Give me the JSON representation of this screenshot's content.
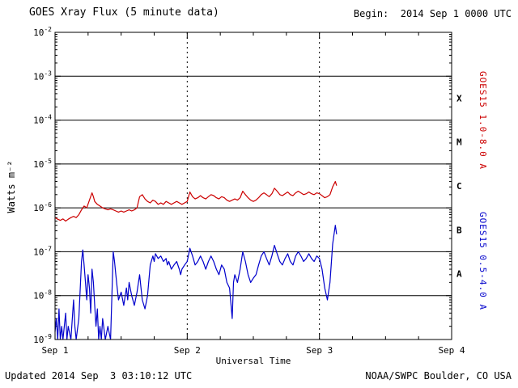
{
  "header": {
    "title": "GOES Xray Flux (5 minute data)",
    "begin": "Begin:  2014 Sep 1 0000 UTC"
  },
  "footer": {
    "updated": "Updated 2014 Sep  3 03:10:12 UTC",
    "source": "NOAA/SWPC Boulder, CO USA"
  },
  "chart_data": {
    "type": "line",
    "title": "GOES Xray Flux (5 minute data)",
    "xlabel": "Universal Time",
    "ylabel": "Watts m⁻²",
    "x_unit": "days since 2014 Sep 1 0000 UTC",
    "xlim": [
      0,
      3
    ],
    "ylim": [
      1e-09,
      0.01
    ],
    "yscale": "log",
    "grid": "decade hlines solid, day vlines dotted",
    "legend_position": "right-rotated",
    "xticks": [
      {
        "value": 0,
        "label": "Sep 1"
      },
      {
        "value": 1,
        "label": "Sep 2"
      },
      {
        "value": 2,
        "label": "Sep 3"
      },
      {
        "value": 3,
        "label": "Sep 4"
      }
    ],
    "ytick_exponents": [
      -2,
      -3,
      -4,
      -5,
      -6,
      -7,
      -8,
      -9
    ],
    "hlines_exponents": [
      -3,
      -4,
      -5,
      -6,
      -7,
      -8
    ],
    "vlines_days": [
      1,
      2
    ],
    "flare_classes": [
      {
        "label": "X",
        "exp": -3.5
      },
      {
        "label": "M",
        "exp": -4.5
      },
      {
        "label": "C",
        "exp": -5.5
      },
      {
        "label": "B",
        "exp": -6.5
      },
      {
        "label": "A",
        "exp": -7.5
      }
    ],
    "series": [
      {
        "name": "GOES15 1.0-8.0 A",
        "color": "#cc0000",
        "points": [
          [
            0.0,
            6e-07
          ],
          [
            0.02,
            5.5e-07
          ],
          [
            0.04,
            5.2e-07
          ],
          [
            0.06,
            5.6e-07
          ],
          [
            0.08,
            5e-07
          ],
          [
            0.1,
            5.5e-07
          ],
          [
            0.12,
            6e-07
          ],
          [
            0.14,
            6.4e-07
          ],
          [
            0.16,
            6e-07
          ],
          [
            0.18,
            7e-07
          ],
          [
            0.2,
            9e-07
          ],
          [
            0.22,
            1.1e-06
          ],
          [
            0.24,
            1e-06
          ],
          [
            0.26,
            1.5e-06
          ],
          [
            0.28,
            2.2e-06
          ],
          [
            0.29,
            1.8e-06
          ],
          [
            0.3,
            1.4e-06
          ],
          [
            0.32,
            1.2e-06
          ],
          [
            0.34,
            1.1e-06
          ],
          [
            0.36,
            1e-06
          ],
          [
            0.38,
            9.5e-07
          ],
          [
            0.4,
            9e-07
          ],
          [
            0.42,
            9.5e-07
          ],
          [
            0.44,
            9e-07
          ],
          [
            0.46,
            8.5e-07
          ],
          [
            0.48,
            8e-07
          ],
          [
            0.5,
            8.5e-07
          ],
          [
            0.52,
            8e-07
          ],
          [
            0.54,
            8.5e-07
          ],
          [
            0.56,
            9e-07
          ],
          [
            0.58,
            8.5e-07
          ],
          [
            0.6,
            9e-07
          ],
          [
            0.62,
            1e-06
          ],
          [
            0.64,
            1.8e-06
          ],
          [
            0.66,
            2e-06
          ],
          [
            0.68,
            1.6e-06
          ],
          [
            0.7,
            1.4e-06
          ],
          [
            0.72,
            1.3e-06
          ],
          [
            0.74,
            1.5e-06
          ],
          [
            0.76,
            1.4e-06
          ],
          [
            0.78,
            1.2e-06
          ],
          [
            0.8,
            1.3e-06
          ],
          [
            0.82,
            1.2e-06
          ],
          [
            0.84,
            1.4e-06
          ],
          [
            0.86,
            1.3e-06
          ],
          [
            0.88,
            1.2e-06
          ],
          [
            0.9,
            1.3e-06
          ],
          [
            0.92,
            1.4e-06
          ],
          [
            0.94,
            1.3e-06
          ],
          [
            0.96,
            1.2e-06
          ],
          [
            0.98,
            1.3e-06
          ],
          [
            1.0,
            1.4e-06
          ],
          [
            1.02,
            2.3e-06
          ],
          [
            1.04,
            1.8e-06
          ],
          [
            1.06,
            1.6e-06
          ],
          [
            1.08,
            1.7e-06
          ],
          [
            1.1,
            1.9e-06
          ],
          [
            1.12,
            1.7e-06
          ],
          [
            1.14,
            1.6e-06
          ],
          [
            1.16,
            1.8e-06
          ],
          [
            1.18,
            2e-06
          ],
          [
            1.2,
            1.9e-06
          ],
          [
            1.22,
            1.7e-06
          ],
          [
            1.24,
            1.6e-06
          ],
          [
            1.26,
            1.8e-06
          ],
          [
            1.28,
            1.7e-06
          ],
          [
            1.3,
            1.5e-06
          ],
          [
            1.32,
            1.4e-06
          ],
          [
            1.34,
            1.5e-06
          ],
          [
            1.36,
            1.6e-06
          ],
          [
            1.38,
            1.5e-06
          ],
          [
            1.4,
            1.7e-06
          ],
          [
            1.42,
            2.4e-06
          ],
          [
            1.44,
            2e-06
          ],
          [
            1.46,
            1.7e-06
          ],
          [
            1.48,
            1.5e-06
          ],
          [
            1.5,
            1.4e-06
          ],
          [
            1.52,
            1.5e-06
          ],
          [
            1.54,
            1.7e-06
          ],
          [
            1.56,
            2e-06
          ],
          [
            1.58,
            2.2e-06
          ],
          [
            1.6,
            2e-06
          ],
          [
            1.62,
            1.8e-06
          ],
          [
            1.64,
            2.1e-06
          ],
          [
            1.66,
            2.8e-06
          ],
          [
            1.68,
            2.4e-06
          ],
          [
            1.7,
            2e-06
          ],
          [
            1.72,
            1.9e-06
          ],
          [
            1.74,
            2.1e-06
          ],
          [
            1.76,
            2.3e-06
          ],
          [
            1.78,
            2e-06
          ],
          [
            1.8,
            1.9e-06
          ],
          [
            1.82,
            2.2e-06
          ],
          [
            1.84,
            2.4e-06
          ],
          [
            1.86,
            2.2e-06
          ],
          [
            1.88,
            2e-06
          ],
          [
            1.9,
            2.1e-06
          ],
          [
            1.92,
            2.3e-06
          ],
          [
            1.94,
            2.1e-06
          ],
          [
            1.96,
            2e-06
          ],
          [
            1.98,
            2.2e-06
          ],
          [
            2.0,
            2.1e-06
          ],
          [
            2.02,
            1.9e-06
          ],
          [
            2.04,
            1.7e-06
          ],
          [
            2.06,
            1.8e-06
          ],
          [
            2.08,
            2e-06
          ],
          [
            2.1,
            3e-06
          ],
          [
            2.12,
            4e-06
          ],
          [
            2.13,
            3.2e-06
          ]
        ]
      },
      {
        "name": "GOES15 0.5-4.0 A",
        "color": "#0000cc",
        "points": [
          [
            0.0,
            1.5e-09
          ],
          [
            0.01,
            3e-09
          ],
          [
            0.02,
            1e-09
          ],
          [
            0.03,
            5e-09
          ],
          [
            0.04,
            1e-09
          ],
          [
            0.05,
            2e-09
          ],
          [
            0.06,
            1e-09
          ],
          [
            0.08,
            4e-09
          ],
          [
            0.09,
            1e-09
          ],
          [
            0.1,
            2e-09
          ],
          [
            0.12,
            1e-09
          ],
          [
            0.14,
            8e-09
          ],
          [
            0.15,
            2e-09
          ],
          [
            0.16,
            1e-09
          ],
          [
            0.18,
            3e-09
          ],
          [
            0.2,
            6e-08
          ],
          [
            0.21,
            1.1e-07
          ],
          [
            0.22,
            5e-08
          ],
          [
            0.23,
            2e-08
          ],
          [
            0.24,
            8e-09
          ],
          [
            0.25,
            3e-08
          ],
          [
            0.26,
            1.5e-08
          ],
          [
            0.27,
            4e-09
          ],
          [
            0.28,
            4e-08
          ],
          [
            0.29,
            2e-08
          ],
          [
            0.3,
            6e-09
          ],
          [
            0.31,
            2e-09
          ],
          [
            0.32,
            5e-09
          ],
          [
            0.33,
            1e-09
          ],
          [
            0.34,
            2e-09
          ],
          [
            0.35,
            1e-09
          ],
          [
            0.36,
            3e-09
          ],
          [
            0.38,
            1e-09
          ],
          [
            0.4,
            2e-09
          ],
          [
            0.42,
            1e-09
          ],
          [
            0.44,
            1e-07
          ],
          [
            0.45,
            6e-08
          ],
          [
            0.46,
            3e-08
          ],
          [
            0.47,
            1.5e-08
          ],
          [
            0.48,
            8e-09
          ],
          [
            0.5,
            1.2e-08
          ],
          [
            0.52,
            6e-09
          ],
          [
            0.54,
            1.5e-08
          ],
          [
            0.55,
            8e-09
          ],
          [
            0.56,
            2e-08
          ],
          [
            0.58,
            1e-08
          ],
          [
            0.6,
            6e-09
          ],
          [
            0.62,
            1.2e-08
          ],
          [
            0.64,
            3e-08
          ],
          [
            0.65,
            1.5e-08
          ],
          [
            0.66,
            8e-09
          ],
          [
            0.68,
            5e-09
          ],
          [
            0.7,
            1e-08
          ],
          [
            0.72,
            5e-08
          ],
          [
            0.74,
            8e-08
          ],
          [
            0.75,
            6e-08
          ],
          [
            0.76,
            9e-08
          ],
          [
            0.78,
            7e-08
          ],
          [
            0.8,
            8e-08
          ],
          [
            0.82,
            6e-08
          ],
          [
            0.84,
            7e-08
          ],
          [
            0.85,
            5e-08
          ],
          [
            0.86,
            6e-08
          ],
          [
            0.88,
            4e-08
          ],
          [
            0.9,
            5e-08
          ],
          [
            0.92,
            6e-08
          ],
          [
            0.94,
            4e-08
          ],
          [
            0.95,
            3e-08
          ],
          [
            0.96,
            4e-08
          ],
          [
            0.98,
            5e-08
          ],
          [
            1.0,
            6e-08
          ],
          [
            1.02,
            1.2e-07
          ],
          [
            1.04,
            8e-08
          ],
          [
            1.06,
            5e-08
          ],
          [
            1.08,
            6e-08
          ],
          [
            1.1,
            8e-08
          ],
          [
            1.12,
            6e-08
          ],
          [
            1.14,
            4e-08
          ],
          [
            1.16,
            6e-08
          ],
          [
            1.18,
            8e-08
          ],
          [
            1.2,
            6e-08
          ],
          [
            1.22,
            4e-08
          ],
          [
            1.24,
            3e-08
          ],
          [
            1.26,
            5e-08
          ],
          [
            1.28,
            4e-08
          ],
          [
            1.3,
            2e-08
          ],
          [
            1.32,
            1.5e-08
          ],
          [
            1.34,
            3e-09
          ],
          [
            1.35,
            2e-08
          ],
          [
            1.36,
            3e-08
          ],
          [
            1.38,
            2e-08
          ],
          [
            1.4,
            4e-08
          ],
          [
            1.42,
            1e-07
          ],
          [
            1.44,
            6e-08
          ],
          [
            1.46,
            3e-08
          ],
          [
            1.48,
            2e-08
          ],
          [
            1.5,
            2.5e-08
          ],
          [
            1.52,
            3e-08
          ],
          [
            1.54,
            5e-08
          ],
          [
            1.56,
            8e-08
          ],
          [
            1.58,
            1e-07
          ],
          [
            1.6,
            7e-08
          ],
          [
            1.62,
            5e-08
          ],
          [
            1.64,
            8e-08
          ],
          [
            1.66,
            1.4e-07
          ],
          [
            1.68,
            9e-08
          ],
          [
            1.7,
            6e-08
          ],
          [
            1.72,
            5e-08
          ],
          [
            1.74,
            7e-08
          ],
          [
            1.76,
            9e-08
          ],
          [
            1.78,
            6e-08
          ],
          [
            1.8,
            5e-08
          ],
          [
            1.82,
            8e-08
          ],
          [
            1.84,
            1e-07
          ],
          [
            1.86,
            8e-08
          ],
          [
            1.88,
            6e-08
          ],
          [
            1.9,
            7e-08
          ],
          [
            1.92,
            9e-08
          ],
          [
            1.94,
            7e-08
          ],
          [
            1.96,
            6e-08
          ],
          [
            1.98,
            8e-08
          ],
          [
            2.0,
            7e-08
          ],
          [
            2.02,
            4e-08
          ],
          [
            2.04,
            1.5e-08
          ],
          [
            2.06,
            8e-09
          ],
          [
            2.08,
            2e-08
          ],
          [
            2.1,
            1.5e-07
          ],
          [
            2.12,
            4e-07
          ],
          [
            2.13,
            2.5e-07
          ]
        ]
      }
    ]
  }
}
